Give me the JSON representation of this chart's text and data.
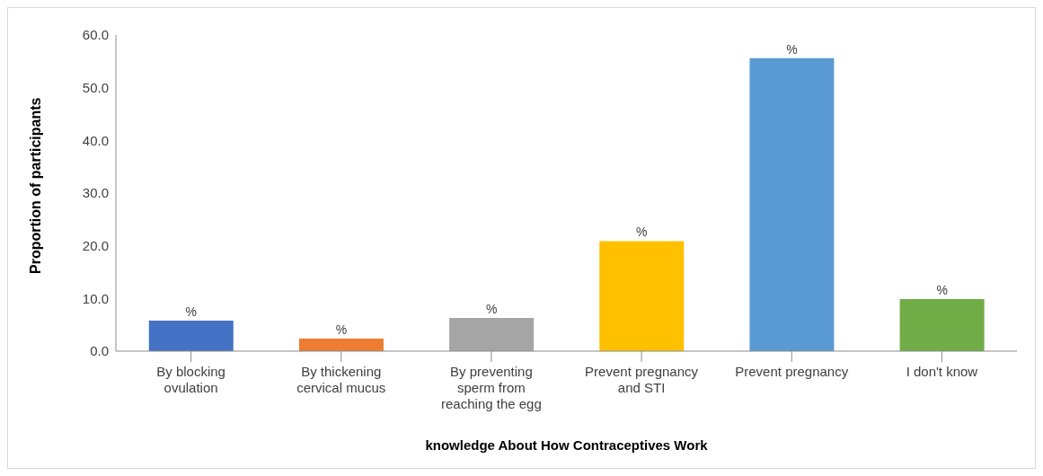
{
  "chart_data": {
    "type": "bar",
    "xlabel": "knowledge About How Contraceptives Work",
    "ylabel": "Proportion of participants",
    "categories": [
      "By blocking ovulation",
      "By thickening cervical mucus",
      "By preventing sperm from reaching the egg",
      "Prevent pregnancy and STI",
      "Prevent pregnancy",
      "I don't know"
    ],
    "values": [
      5.8,
      2.4,
      6.3,
      20.9,
      55.6,
      9.9
    ],
    "colors": [
      "#4472c4",
      "#ed7d31",
      "#a5a5a5",
      "#ffc000",
      "#5b9bd5",
      "#70ad47"
    ],
    "value_labels": [
      "%",
      "%",
      "%",
      "%",
      "%",
      "%"
    ],
    "ylim": [
      0,
      60
    ],
    "yticks": [
      {
        "value": 0,
        "label": "0.0"
      },
      {
        "value": 10,
        "label": "10.0"
      },
      {
        "value": 20,
        "label": "20.0"
      },
      {
        "value": 30,
        "label": "30.0"
      },
      {
        "value": 40,
        "label": "40.0"
      },
      {
        "value": 50,
        "label": "50.0"
      },
      {
        "value": 60,
        "label": "60.0"
      }
    ],
    "grid": false,
    "legend": false
  }
}
